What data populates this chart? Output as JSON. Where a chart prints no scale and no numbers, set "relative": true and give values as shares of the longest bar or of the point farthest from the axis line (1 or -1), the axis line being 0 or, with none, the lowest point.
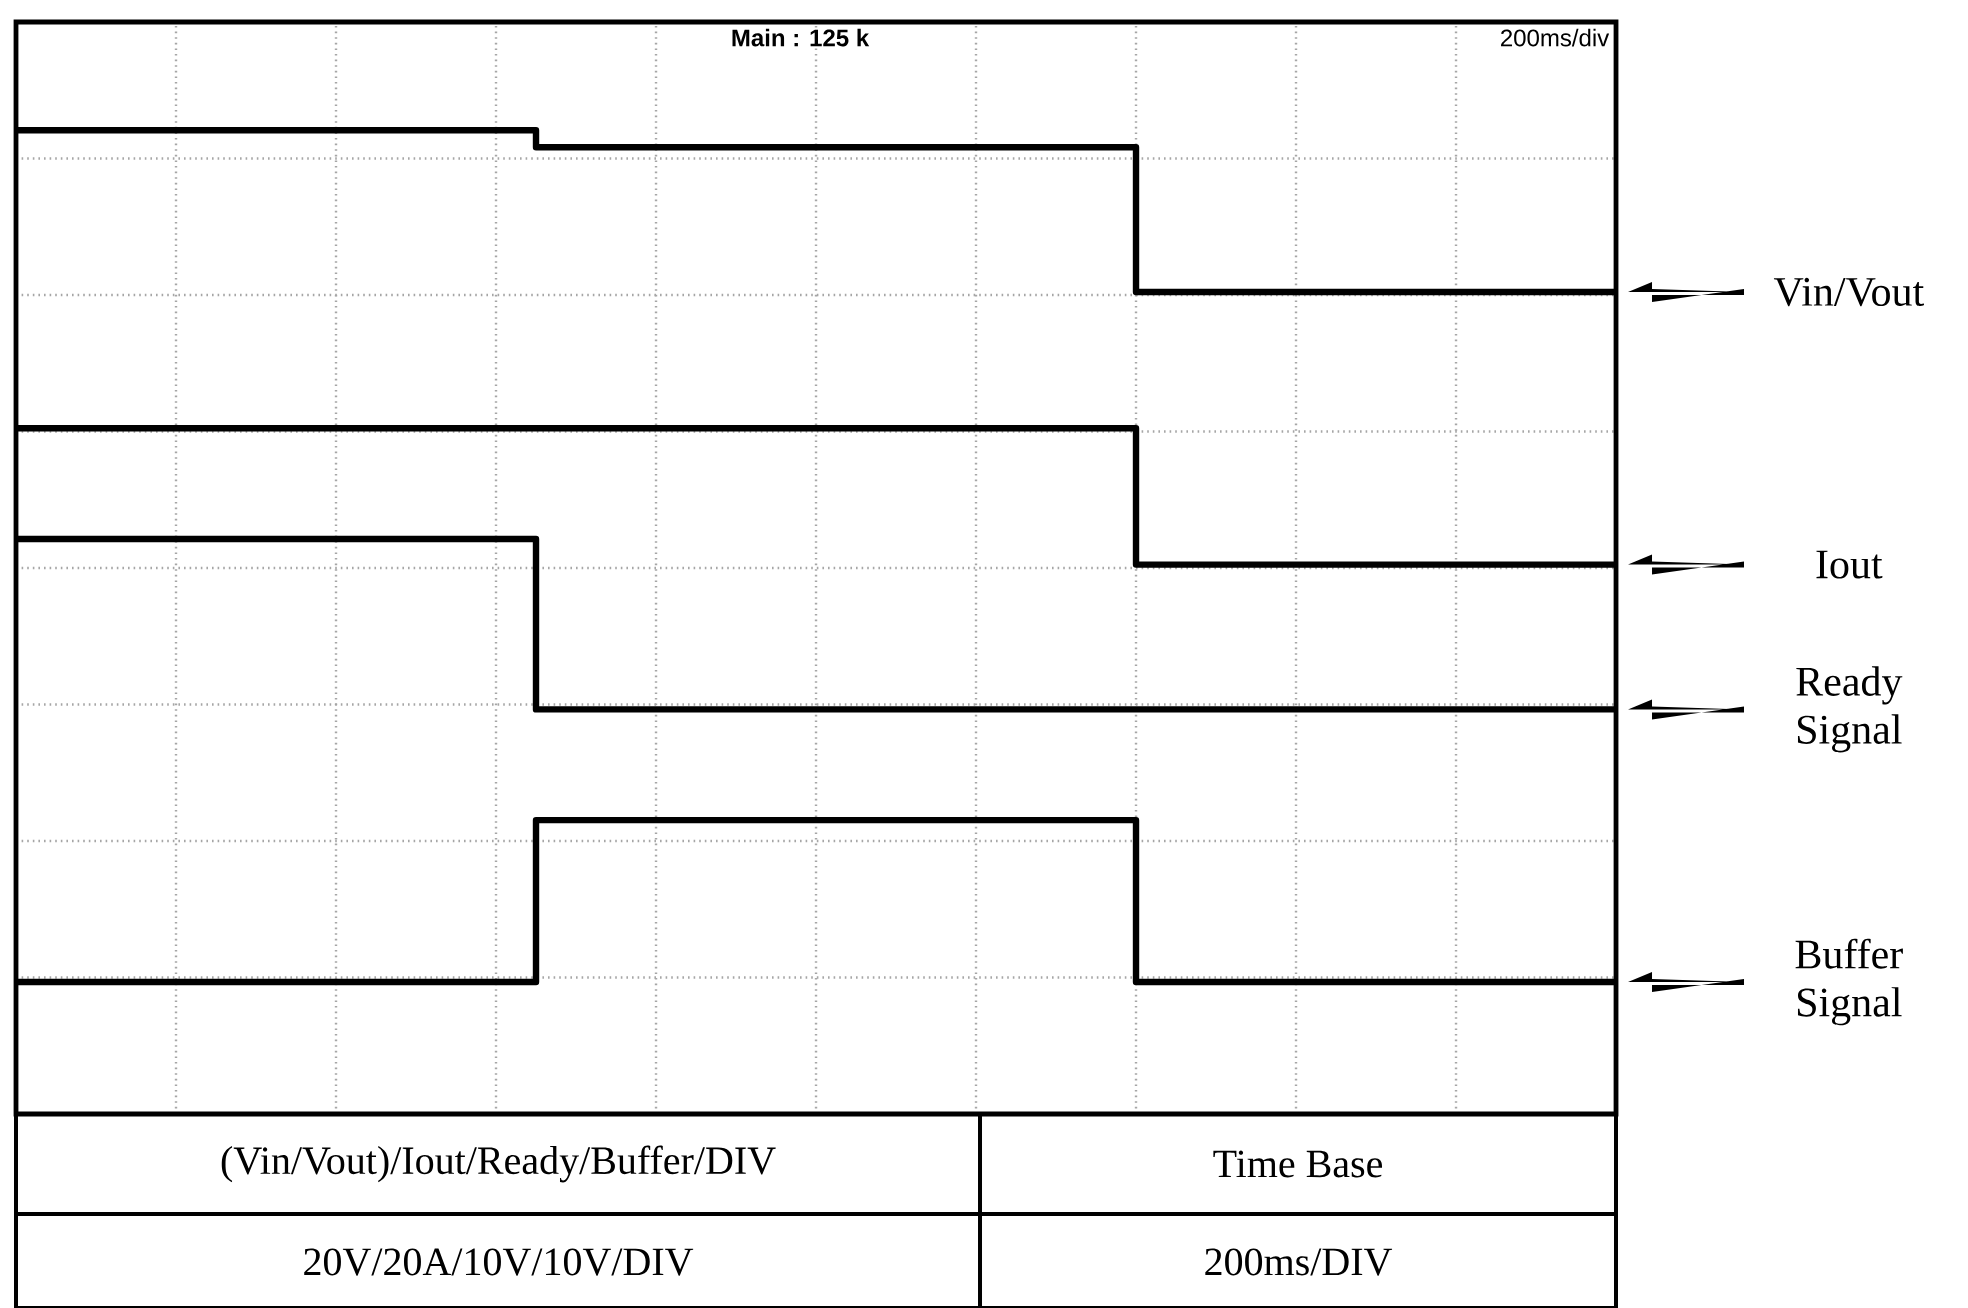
{
  "chart_data": {
    "type": "step",
    "relative": true,
    "grid": true,
    "marker": "none",
    "legend": "right",
    "categories": [
      null,
      null,
      null,
      null,
      null,
      null,
      null,
      null,
      null,
      null,
      null,
      null,
      null,
      null,
      null,
      null,
      null,
      null,
      null,
      null,
      null,
      null,
      null,
      null,
      null,
      null,
      null,
      null,
      null,
      null,
      null,
      null,
      null,
      null,
      null,
      null,
      null,
      null,
      null,
      null,
      null
    ],
    "series": [
      {
        "name": "Vin/Vout",
        "color": "#000000",
        "values": [
          1.0,
          1.0,
          1.0,
          1.0,
          1.0,
          1.0,
          1.0,
          1.0,
          1.0,
          1.0,
          1.0,
          1.0,
          1.0,
          0.98,
          0.98,
          0.98,
          0.98,
          0.98,
          0.98,
          0.98,
          0.98,
          0.98,
          0.98,
          0.98,
          0.98,
          0.98,
          0.98,
          0.98,
          0.81,
          0.81,
          0.81,
          0.81,
          0.81,
          0.81,
          0.81,
          0.81,
          0.81,
          0.81,
          0.81,
          0.81,
          0.81
        ]
      },
      {
        "name": "Iout",
        "color": "#000000",
        "values": [
          0.65,
          0.65,
          0.65,
          0.65,
          0.65,
          0.65,
          0.65,
          0.65,
          0.65,
          0.65,
          0.65,
          0.65,
          0.65,
          0.65,
          0.65,
          0.65,
          0.65,
          0.65,
          0.65,
          0.65,
          0.65,
          0.65,
          0.65,
          0.65,
          0.65,
          0.65,
          0.65,
          0.65,
          0.49,
          0.49,
          0.49,
          0.49,
          0.49,
          0.49,
          0.49,
          0.49,
          0.49,
          0.49,
          0.49,
          0.49,
          0.49
        ]
      },
      {
        "name": "Ready Signal",
        "color": "#000000",
        "values": [
          0.52,
          0.52,
          0.52,
          0.52,
          0.52,
          0.52,
          0.52,
          0.52,
          0.52,
          0.52,
          0.52,
          0.52,
          0.52,
          0.32,
          0.32,
          0.32,
          0.32,
          0.32,
          0.32,
          0.32,
          0.32,
          0.32,
          0.32,
          0.32,
          0.32,
          0.32,
          0.32,
          0.32,
          0.32,
          0.32,
          0.32,
          0.32,
          0.32,
          0.32,
          0.32,
          0.32,
          0.32,
          0.32,
          0.32,
          0.32,
          0.32
        ]
      },
      {
        "name": "Buffer Signal",
        "color": "#000000",
        "values": [
          0,
          0,
          0,
          0,
          0,
          0,
          0,
          0,
          0,
          0,
          0,
          0,
          0,
          0.19,
          0.19,
          0.19,
          0.19,
          0.19,
          0.19,
          0.19,
          0.19,
          0.19,
          0.19,
          0.19,
          0.19,
          0.19,
          0.19,
          0.19,
          0,
          0,
          0,
          0,
          0,
          0,
          0,
          0,
          0,
          0,
          0,
          0,
          0
        ]
      }
    ],
    "annotations": [
      "Main : 125 k",
      "200ms/div",
      "(Vin/Vout)/Iout/Ready/Buffer/DIV",
      "Time Base",
      "20V/20A/10V/10V/DIV",
      "200ms/DIV"
    ]
  }
}
